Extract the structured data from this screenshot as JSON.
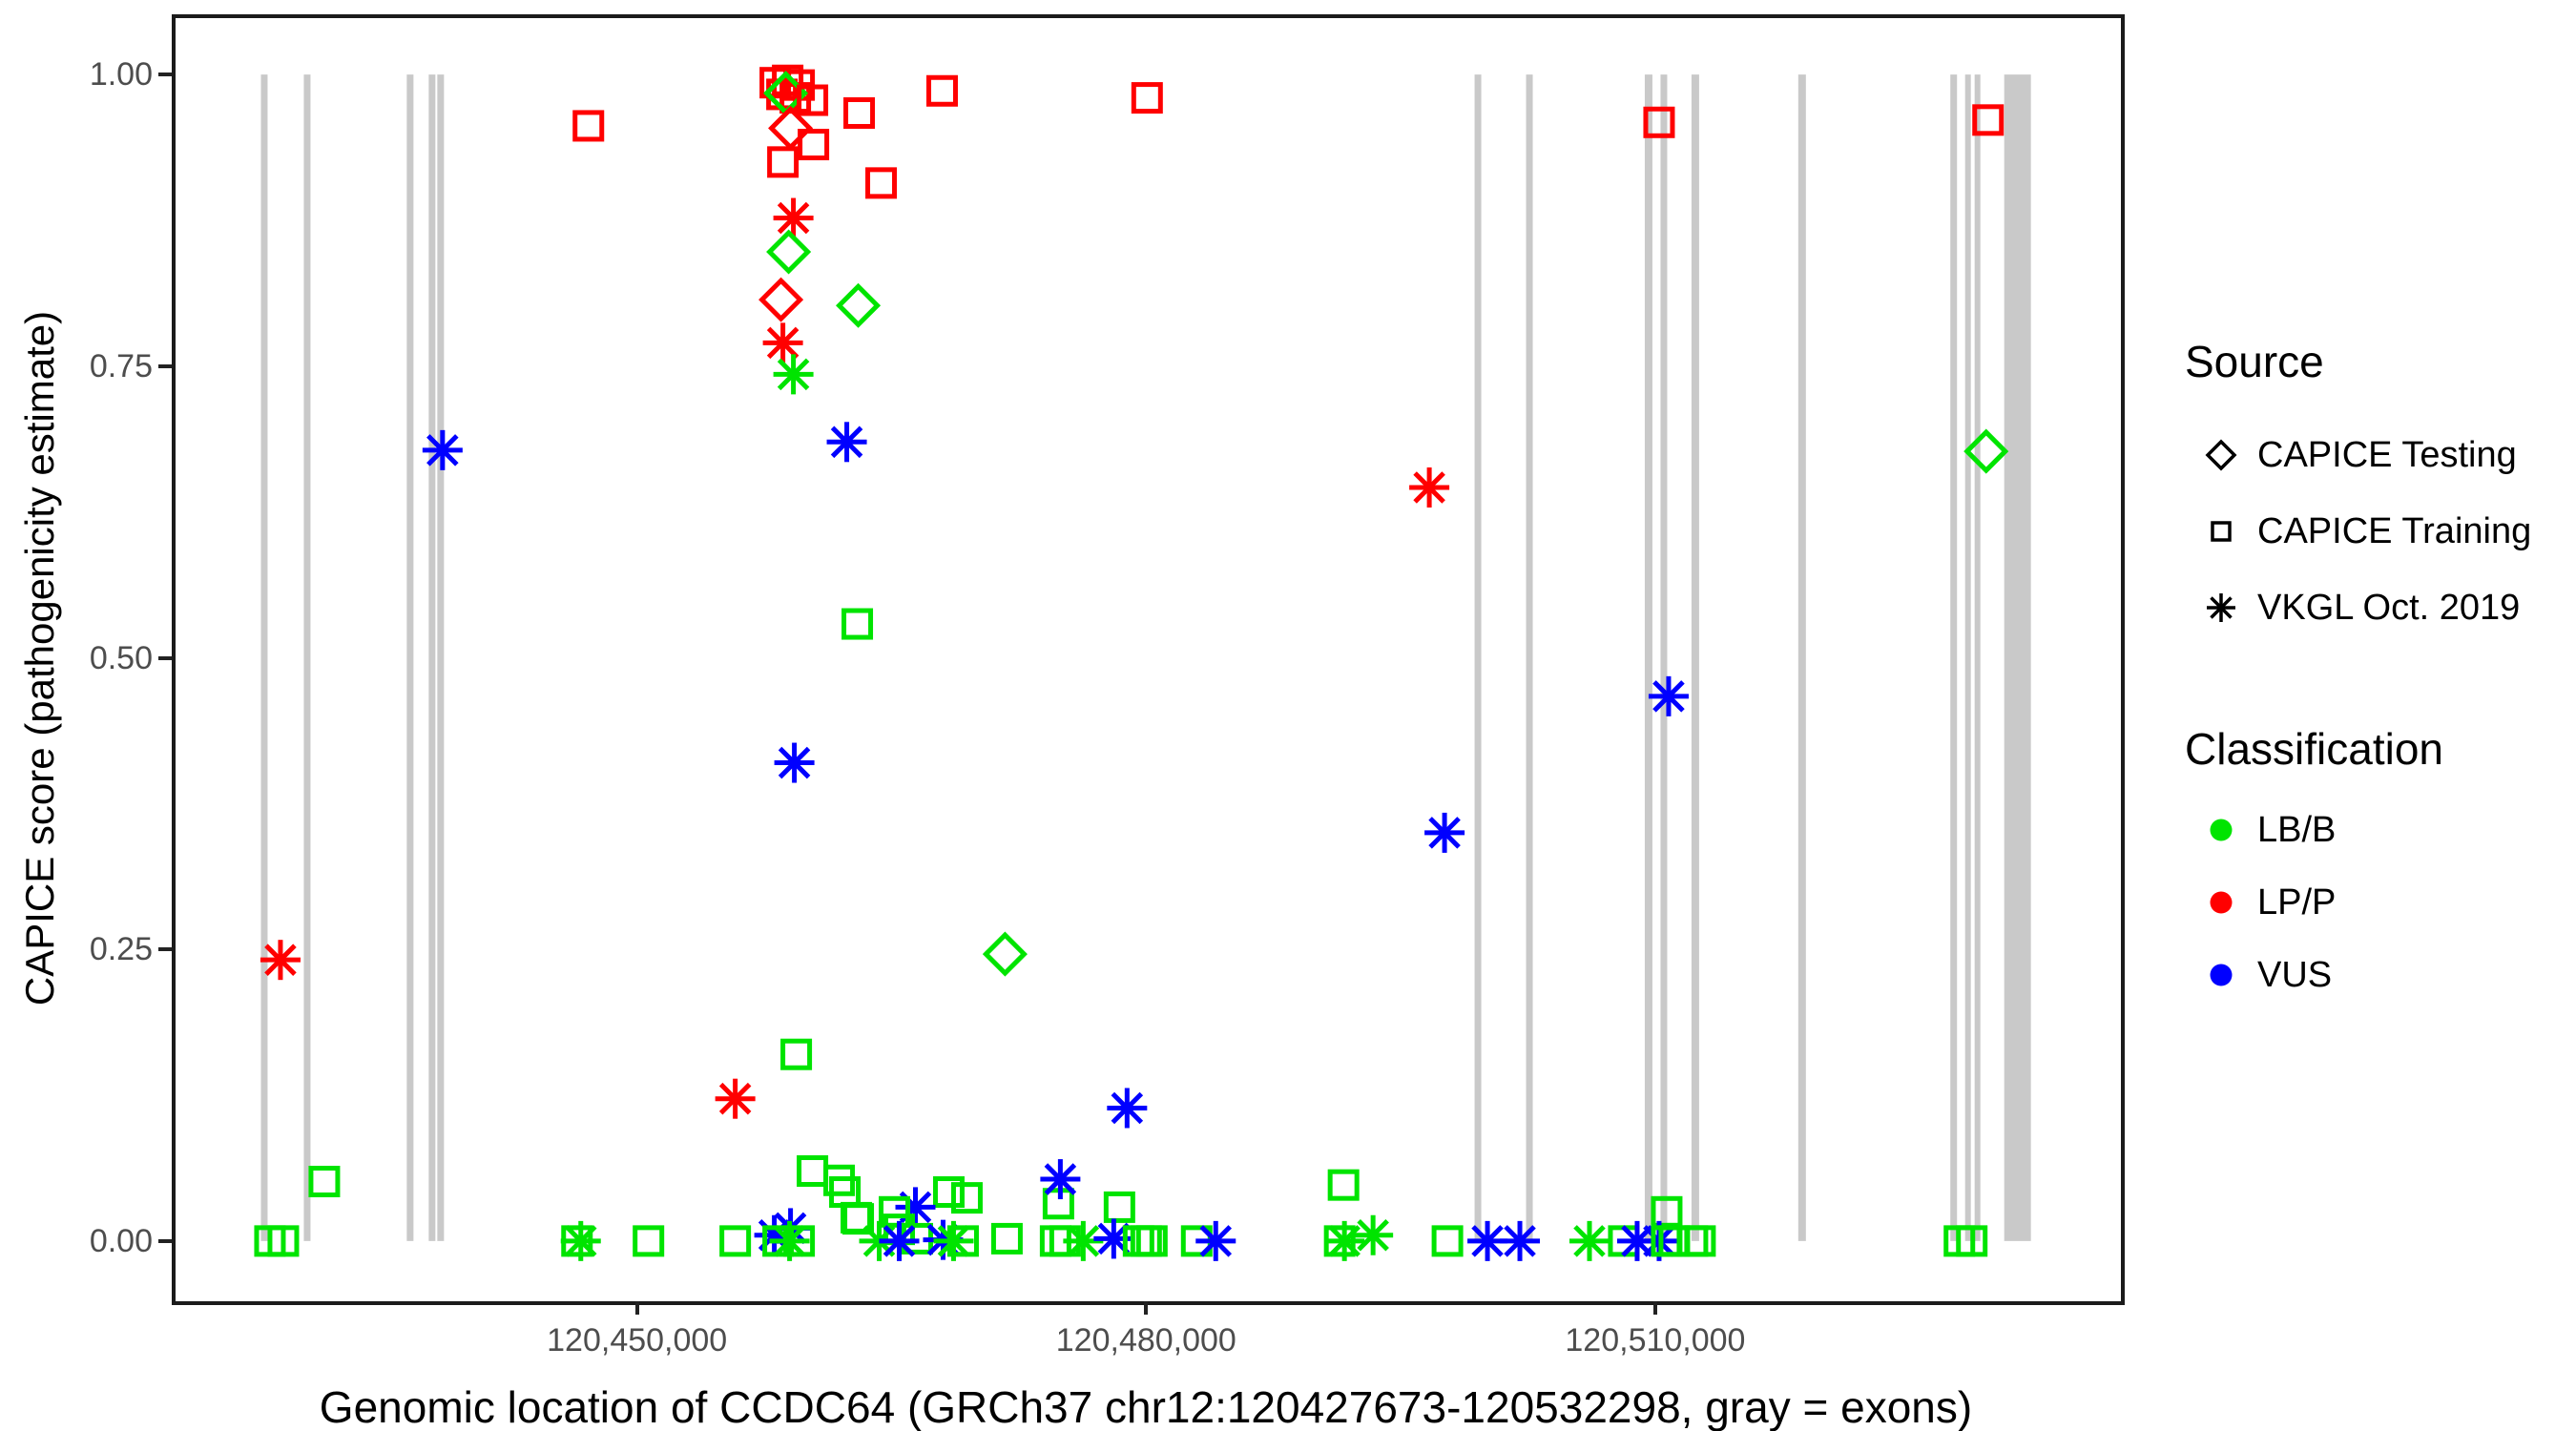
{
  "colors": {
    "exon": "#c9c9c9",
    "panel_border": "#1b1b1b",
    "axis_text": "#4d4d4d",
    "axis_title": "#000000"
  },
  "legend": {
    "source": {
      "title": "Source",
      "items": [
        {
          "label": "CAPICE Testing",
          "shape": "diamond"
        },
        {
          "label": "CAPICE Training",
          "shape": "square"
        },
        {
          "label": "VKGL Oct. 2019",
          "shape": "asterisk"
        }
      ]
    },
    "classification": {
      "title": "Classification",
      "items": [
        {
          "label": "LB/B",
          "color": "#00e400"
        },
        {
          "label": "LP/P",
          "color": "#ff0000"
        },
        {
          "label": "VUS",
          "color": "#0000ff"
        }
      ]
    }
  },
  "chart_data": {
    "type": "scatter",
    "title": "",
    "xlabel": "Genomic location of CCDC64 (GRCh37 chr12:120427673-120532298, gray = exons)",
    "ylabel": "CAPICE score (pathogenicity estimate)",
    "gene": {
      "name": "CCDC64",
      "assembly": "GRCh37",
      "chromosome": "chr12",
      "start": 120427673,
      "end": 120532298
    },
    "x_domain": [
      120422694,
      120537326
    ],
    "y_domain": [
      -0.05,
      1.05
    ],
    "grid": false,
    "legend_position": "right",
    "x_ticks": [
      {
        "bp": 120450000,
        "label": "120,450,000"
      },
      {
        "bp": 120480000,
        "label": "120,480,000"
      },
      {
        "bp": 120510000,
        "label": "120,510,000"
      }
    ],
    "y_ticks": [
      {
        "v": 1.0,
        "label": "1.00"
      },
      {
        "v": 0.75,
        "label": "0.75"
      },
      {
        "v": 0.5,
        "label": "0.50"
      },
      {
        "v": 0.25,
        "label": "0.25"
      },
      {
        "v": 0.0,
        "label": "0.00"
      }
    ],
    "class_colors": {
      "G": "#00e400",
      "P": "#ff0000",
      "U": "#0000ff"
    },
    "class_names": {
      "G": "LB/B",
      "P": "LP/P",
      "U": "VUS"
    },
    "shape_names": {
      "s": "CAPICE Training",
      "d": "CAPICE Testing",
      "a": "VKGL Oct. 2019"
    },
    "exons_bp": [
      [
        120427837,
        120428230
      ],
      [
        120430365,
        120430758
      ],
      [
        120436432,
        120436826
      ],
      [
        120437725,
        120438118
      ],
      [
        120438230,
        120438624
      ],
      [
        120499354,
        120499747
      ],
      [
        120502388,
        120502781
      ],
      [
        120509382,
        120509831
      ],
      [
        120510310,
        120510703
      ],
      [
        120512135,
        120512584
      ],
      [
        120518427,
        120518876
      ],
      [
        120527388,
        120527781
      ],
      [
        120528258,
        120528595
      ],
      [
        120528820,
        120529157
      ],
      [
        120530562,
        120532135
      ]
    ],
    "points": [
      [
        120447135,
        0.956,
        "s",
        "P"
      ],
      [
        120458146,
        0.993,
        "s",
        "P"
      ],
      [
        120458877,
        0.995,
        "s",
        "P"
      ],
      [
        120459551,
        0.991,
        "s",
        "P"
      ],
      [
        120458540,
        0.983,
        "s",
        "P"
      ],
      [
        120459326,
        0.98,
        "s",
        "P"
      ],
      [
        120458764,
        0.984,
        "d",
        "G"
      ],
      [
        120460337,
        0.978,
        "s",
        "P"
      ],
      [
        120463090,
        0.967,
        "s",
        "P"
      ],
      [
        120467978,
        0.986,
        "s",
        "P"
      ],
      [
        120480056,
        0.98,
        "s",
        "P"
      ],
      [
        120459045,
        0.954,
        "d",
        "P"
      ],
      [
        120460394,
        0.94,
        "s",
        "P"
      ],
      [
        120458596,
        0.925,
        "s",
        "P"
      ],
      [
        120464382,
        0.907,
        "s",
        "P"
      ],
      [
        120459214,
        0.877,
        "a",
        "P"
      ],
      [
        120458933,
        0.848,
        "d",
        "G"
      ],
      [
        120458483,
        0.807,
        "d",
        "P"
      ],
      [
        120463034,
        0.802,
        "d",
        "G"
      ],
      [
        120458596,
        0.77,
        "a",
        "P"
      ],
      [
        120459214,
        0.743,
        "a",
        "G"
      ],
      [
        120510226,
        0.959,
        "s",
        "P"
      ],
      [
        120529609,
        0.961,
        "s",
        "P"
      ],
      [
        120438539,
        0.678,
        "a",
        "U"
      ],
      [
        120462360,
        0.685,
        "a",
        "U"
      ],
      [
        120529497,
        0.677,
        "d",
        "G"
      ],
      [
        120496685,
        0.646,
        "a",
        "P"
      ],
      [
        120462978,
        0.529,
        "s",
        "G"
      ],
      [
        120510788,
        0.467,
        "a",
        "U"
      ],
      [
        120459270,
        0.41,
        "a",
        "U"
      ],
      [
        120497584,
        0.35,
        "a",
        "U"
      ],
      [
        120471685,
        0.246,
        "d",
        "G"
      ],
      [
        120428988,
        0.241,
        "a",
        "P"
      ],
      [
        120478876,
        0.114,
        "a",
        "U"
      ],
      [
        120455787,
        0.122,
        "a",
        "P"
      ],
      [
        120459382,
        0.16,
        "s",
        "G"
      ],
      [
        120431573,
        0.051,
        "s",
        "G"
      ],
      [
        120460337,
        0.06,
        "s",
        "G"
      ],
      [
        120461910,
        0.052,
        "s",
        "G"
      ],
      [
        120462247,
        0.042,
        "s",
        "G"
      ],
      [
        120462922,
        0.02,
        "s",
        "G"
      ],
      [
        120474832,
        0.032,
        "s",
        "G"
      ],
      [
        120474944,
        0.053,
        "a",
        "U"
      ],
      [
        120478427,
        0.029,
        "s",
        "G"
      ],
      [
        120510675,
        0.025,
        "s",
        "G"
      ],
      [
        120491629,
        0.048,
        "s",
        "G"
      ],
      [
        120468371,
        0.042,
        "s",
        "G"
      ],
      [
        120469439,
        0.037,
        "s",
        "G"
      ],
      [
        120466405,
        0.029,
        "a",
        "U"
      ],
      [
        120463034,
        0.019,
        "s",
        "G"
      ],
      [
        120465169,
        0.025,
        "s",
        "G"
      ],
      [
        120465450,
        0.01,
        "s",
        "G"
      ],
      [
        120466517,
        0.002,
        "s",
        "G"
      ],
      [
        120428370,
        0.0,
        "s",
        "G"
      ],
      [
        120429157,
        0.0,
        "s",
        "G"
      ],
      [
        120446461,
        0.0,
        "s",
        "G"
      ],
      [
        120446686,
        0.0,
        "a",
        "G"
      ],
      [
        120450674,
        0.0,
        "s",
        "G"
      ],
      [
        120455787,
        0.0,
        "s",
        "G"
      ],
      [
        120458090,
        0.005,
        "a",
        "U"
      ],
      [
        120459045,
        0.011,
        "a",
        "U"
      ],
      [
        120458315,
        0.0,
        "s",
        "G"
      ],
      [
        120458989,
        0.0,
        "a",
        "G"
      ],
      [
        120459551,
        0.0,
        "s",
        "G"
      ],
      [
        120464270,
        0.0,
        "a",
        "G"
      ],
      [
        120465450,
        0.0,
        "a",
        "U"
      ],
      [
        120468034,
        0.001,
        "a",
        "U"
      ],
      [
        120468652,
        0.0,
        "a",
        "G"
      ],
      [
        120469214,
        0.0,
        "s",
        "G"
      ],
      [
        120471798,
        0.002,
        "s",
        "G"
      ],
      [
        120474663,
        0.0,
        "s",
        "G"
      ],
      [
        120475225,
        0.0,
        "s",
        "G"
      ],
      [
        120476292,
        0.0,
        "a",
        "G"
      ],
      [
        120478090,
        0.002,
        "a",
        "U"
      ],
      [
        120479551,
        0.0,
        "s",
        "G"
      ],
      [
        120480000,
        0.0,
        "s",
        "G"
      ],
      [
        120480337,
        0.0,
        "s",
        "G"
      ],
      [
        120482978,
        0.0,
        "s",
        "G"
      ],
      [
        120484101,
        0.0,
        "a",
        "U"
      ],
      [
        120491404,
        0.0,
        "s",
        "G"
      ],
      [
        120491685,
        0.0,
        "a",
        "G"
      ],
      [
        120493371,
        0.005,
        "a",
        "G"
      ],
      [
        120497753,
        0.0,
        "s",
        "G"
      ],
      [
        120500112,
        0.0,
        "a",
        "U"
      ],
      [
        120502022,
        0.0,
        "a",
        "U"
      ],
      [
        120506124,
        0.0,
        "a",
        "G"
      ],
      [
        120508146,
        0.0,
        "s",
        "G"
      ],
      [
        120508933,
        0.0,
        "a",
        "U"
      ],
      [
        120510226,
        0.0,
        "a",
        "U"
      ],
      [
        120510675,
        0.0,
        "s",
        "G"
      ],
      [
        120511124,
        0.0,
        "s",
        "G"
      ],
      [
        120512191,
        0.0,
        "s",
        "G"
      ],
      [
        120512640,
        0.0,
        "s",
        "G"
      ],
      [
        120527922,
        0.0,
        "s",
        "G"
      ],
      [
        120528652,
        0.0,
        "s",
        "G"
      ]
    ]
  }
}
